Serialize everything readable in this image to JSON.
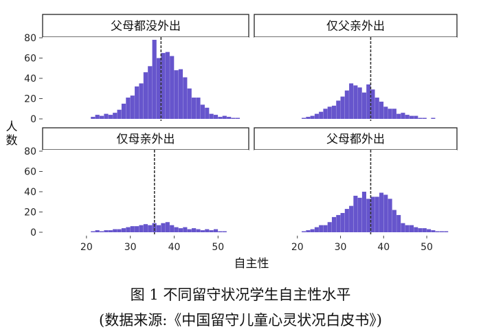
{
  "figure": {
    "ylabel": "人数",
    "xlabel": "自主性",
    "caption_main": "图 1  不同留守状况学生自主性水平",
    "caption_source": "(数据来源:《中国留守儿童心灵状况白皮书》)",
    "bar_color": "#6655cc"
  },
  "chart_data": {
    "type": "bar",
    "layout": "facet 2x2",
    "x_range": [
      10,
      57
    ],
    "x_ticks": [
      20,
      30,
      40,
      50
    ],
    "ylim": [
      0,
      82
    ],
    "y_ticks": [
      0,
      20,
      40,
      60,
      80
    ],
    "bin_start": 21,
    "bin_width": 1,
    "panels": [
      {
        "title": "父母都没外出",
        "mean": 37,
        "values": [
          2,
          4,
          3,
          5,
          4,
          6,
          9,
          15,
          21,
          23,
          32,
          35,
          46,
          52,
          78,
          60,
          65,
          66,
          62,
          48,
          49,
          41,
          30,
          21,
          21,
          14,
          11,
          5,
          4,
          2,
          3,
          2,
          1,
          1
        ]
      },
      {
        "title": "仅父亲外出",
        "mean": 37,
        "values": [
          1,
          2,
          3,
          5,
          7,
          10,
          12,
          13,
          18,
          22,
          28,
          35,
          33,
          31,
          26,
          34,
          29,
          21,
          17,
          12,
          10,
          10,
          5,
          6,
          4,
          3,
          3,
          1,
          1,
          0,
          1,
          0,
          0,
          0
        ]
      },
      {
        "title": "仅母亲外出",
        "mean": 35.5,
        "values": [
          1,
          2,
          1,
          2,
          2,
          3,
          3,
          4,
          5,
          6,
          6,
          7,
          8,
          7,
          9,
          7,
          9,
          10,
          7,
          5,
          4,
          5,
          3,
          4,
          3,
          2,
          3,
          2,
          3,
          1,
          1,
          0,
          0,
          0
        ]
      },
      {
        "title": "父母都外出",
        "mean": 37,
        "values": [
          1,
          2,
          3,
          5,
          7,
          7,
          10,
          15,
          17,
          19,
          23,
          26,
          36,
          34,
          40,
          33,
          35,
          35,
          39,
          37,
          33,
          22,
          17,
          9,
          7,
          7,
          5,
          4,
          4,
          3,
          2,
          1,
          1,
          1
        ]
      }
    ]
  }
}
